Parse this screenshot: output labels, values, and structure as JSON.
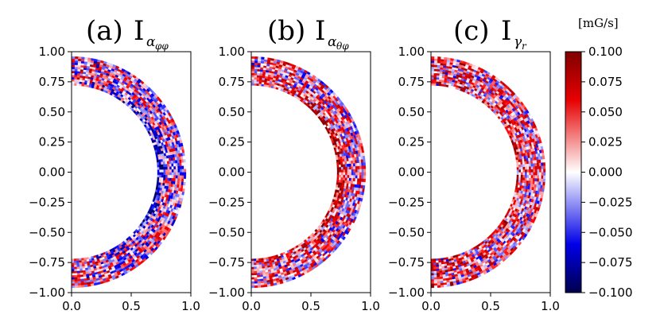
{
  "chart_data": {
    "type": "heatmap",
    "colormap": "seismic",
    "color_low": "#00008b",
    "color_mid": "#ffffff",
    "color_high": "#8b0000",
    "vmin": -0.1,
    "vmax": 0.1,
    "colorbar_label": "[mG/s]",
    "colorbar_ticks": [
      "0.100",
      "0.075",
      "0.050",
      "0.025",
      "0.000",
      "−0.025",
      "−0.050",
      "−0.075",
      "−0.100"
    ],
    "colorbar_tick_values": [
      0.1,
      0.075,
      0.05,
      0.025,
      0.0,
      -0.025,
      -0.05,
      -0.075,
      -0.1
    ],
    "xlim": [
      0.0,
      1.0
    ],
    "ylim": [
      -1.0,
      1.0
    ],
    "xticks": [
      "0.0",
      "0.5",
      "1.0"
    ],
    "xtick_values": [
      0.0,
      0.5,
      1.0
    ],
    "yticks": [
      "1.00",
      "0.75",
      "0.50",
      "0.25",
      "0.00",
      "−0.25",
      "−0.50",
      "−0.75",
      "−1.00"
    ],
    "ytick_values": [
      1.0,
      0.75,
      0.5,
      0.25,
      0.0,
      -0.25,
      -0.5,
      -0.75,
      -1.0
    ],
    "shell": {
      "r_inner": 0.72,
      "r_outer": 0.96
    },
    "panels": [
      {
        "label": "(a)",
        "symbol": "I",
        "sub": "α",
        "subsub": "φφ",
        "bias": 0.0,
        "inner_band": -0.06,
        "polar_band": 0.05
      },
      {
        "label": "(b)",
        "symbol": "I",
        "sub": "α",
        "subsub": "θφ",
        "bias": 0.01,
        "inner_band": 0.06,
        "polar_band": 0.04
      },
      {
        "label": "(c)",
        "symbol": "I",
        "sub": "γ",
        "subsub": "r",
        "bias": 0.015,
        "inner_band": 0.03,
        "polar_band": 0.05
      }
    ]
  }
}
